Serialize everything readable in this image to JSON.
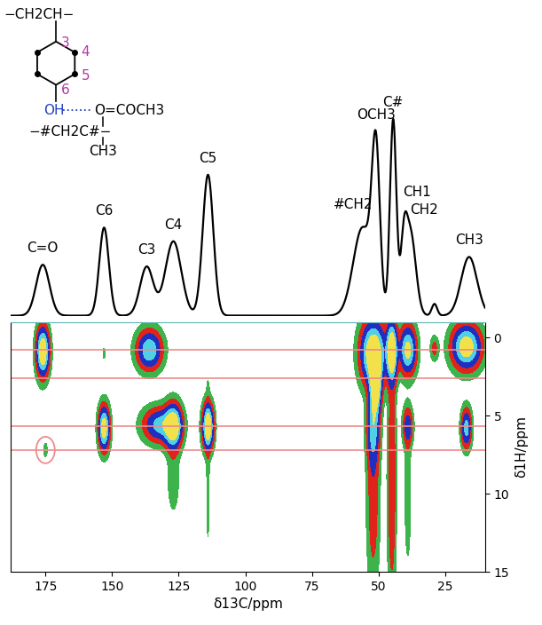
{
  "chart_data": {
    "type": "contour",
    "xlabel": "δ13C/ppm",
    "ylabel": "δ1H/ppm",
    "xlim": [
      188,
      10
    ],
    "xticks": [
      175,
      150,
      125,
      100,
      75,
      50,
      25
    ],
    "ylim": [
      15,
      -1
    ],
    "yticks": [
      0,
      5,
      10,
      15
    ],
    "ref_lines_y": [
      0.8,
      2.6,
      5.7,
      7.2
    ],
    "ref_line_color": "#f08a8a",
    "circled_peak": {
      "x": 175,
      "y": 7.2
    },
    "contour_levels": [
      0.05,
      0.15,
      0.3,
      0.5,
      0.7,
      1.5
    ],
    "colors": [
      "#3cb44b",
      "#e0241b",
      "#1f2fbf",
      "#4fd0e8",
      "#f2e14a"
    ],
    "cross_peaks": [
      {
        "x": 176,
        "y": 0.9,
        "amplitude": 1.0,
        "width_c": 1.5,
        "width_h": 1.0
      },
      {
        "x": 175,
        "y": 7.2,
        "amplitude": 0.09,
        "width_c": 0.6,
        "width_h": 0.4
      },
      {
        "x": 153,
        "y": 5.8,
        "amplitude": 0.9,
        "width_c": 1.3,
        "width_h": 0.9
      },
      {
        "x": 153,
        "y": 1.0,
        "amplitude": 0.07,
        "width_c": 0.5,
        "width_h": 0.4
      },
      {
        "x": 136,
        "y": 0.8,
        "amplitude": 0.7,
        "width_c": 3.0,
        "width_h": 0.8
      },
      {
        "x": 132,
        "y": 5.6,
        "amplitude": 0.6,
        "width_c": 4.0,
        "width_h": 0.7
      },
      {
        "x": 127,
        "y": 5.7,
        "amplitude": 0.9,
        "width_c": 2.0,
        "width_h": 0.9
      },
      {
        "x": 127,
        "y": 9.0,
        "amplitude": 0.12,
        "width_c": 1.5,
        "width_h": 1.5
      },
      {
        "x": 114,
        "y": 5.7,
        "amplitude": 1.0,
        "width_c": 1.3,
        "width_h": 0.9
      },
      {
        "x": 114,
        "y": 8.0,
        "amplitude": 0.08,
        "width_c": 0.5,
        "width_h": 5.0
      },
      {
        "x": 52,
        "y": 1.0,
        "amplitude": 1.0,
        "width_c": 3.0,
        "width_h": 1.3
      },
      {
        "x": 51,
        "y": 3.0,
        "amplitude": 0.9,
        "width_c": 1.3,
        "width_h": 1.2
      },
      {
        "x": 52,
        "y": 5.8,
        "amplitude": 0.5,
        "width_c": 1.5,
        "width_h": 1.5
      },
      {
        "x": 52,
        "y": 10.0,
        "amplitude": 0.25,
        "width_c": 1.5,
        "width_h": 4.0
      },
      {
        "x": 45,
        "y": 0.9,
        "amplitude": 1.0,
        "width_c": 1.3,
        "width_h": 1.2
      },
      {
        "x": 45,
        "y": 9.0,
        "amplitude": 0.3,
        "width_c": 1.0,
        "width_h": 5.0
      },
      {
        "x": 39,
        "y": 0.8,
        "amplitude": 0.8,
        "width_c": 2.0,
        "width_h": 1.0
      },
      {
        "x": 39,
        "y": 5.7,
        "amplitude": 0.4,
        "width_c": 1.2,
        "width_h": 0.8
      },
      {
        "x": 39,
        "y": 10.0,
        "amplitude": 0.12,
        "width_c": 0.8,
        "width_h": 3.0
      },
      {
        "x": 29,
        "y": 0.7,
        "amplitude": 0.2,
        "width_c": 1.0,
        "width_h": 0.5
      },
      {
        "x": 17,
        "y": 0.6,
        "amplitude": 0.9,
        "width_c": 3.5,
        "width_h": 0.9
      },
      {
        "x": 17,
        "y": 5.8,
        "amplitude": 0.6,
        "width_c": 1.2,
        "width_h": 0.8
      }
    ],
    "projection": {
      "type": "line",
      "color": "#000000",
      "ylim": [
        0,
        1.15
      ],
      "tick_labels": false,
      "peaks": [
        {
          "x": 176,
          "amplitude": 0.26,
          "width": 2.5
        },
        {
          "x": 153,
          "amplitude": 0.45,
          "width": 1.8
        },
        {
          "x": 137,
          "amplitude": 0.25,
          "width": 2.5
        },
        {
          "x": 127,
          "amplitude": 0.38,
          "width": 3.0
        },
        {
          "x": 114,
          "amplitude": 0.72,
          "width": 2.0
        },
        {
          "x": 56,
          "amplitude": 0.45,
          "width": 3.5
        },
        {
          "x": 51,
          "amplitude": 0.78,
          "width": 1.5
        },
        {
          "x": 44.5,
          "amplitude": 1.0,
          "width": 1.2
        },
        {
          "x": 40.5,
          "amplitude": 0.3,
          "width": 1.2
        },
        {
          "x": 38,
          "amplitude": 0.42,
          "width": 2.0
        },
        {
          "x": 29,
          "amplitude": 0.06,
          "width": 1.0
        },
        {
          "x": 16,
          "amplitude": 0.3,
          "width": 3.0
        }
      ],
      "labels": [
        {
          "text": "C=O",
          "x": 176
        },
        {
          "text": "C6",
          "x": 153
        },
        {
          "text": "C3",
          "x": 137
        },
        {
          "text": "C4",
          "x": 127
        },
        {
          "text": "C5",
          "x": 114
        },
        {
          "text": "#CH2",
          "x": 56
        },
        {
          "text": "OCH3",
          "x": 51
        },
        {
          "text": "C#",
          "x": 44.5
        },
        {
          "text": "CH1",
          "x": 40.5
        },
        {
          "text": "CH2",
          "x": 38
        },
        {
          "text": "CH3",
          "x": 16
        }
      ]
    },
    "structure": {
      "chain": "−CH2CH−",
      "positions": [
        "3",
        "4",
        "5",
        "6"
      ],
      "donor": "OH",
      "acceptor": "O=COCH3",
      "backbone": "−#CH2C#−",
      "methyl": "CH3"
    }
  }
}
